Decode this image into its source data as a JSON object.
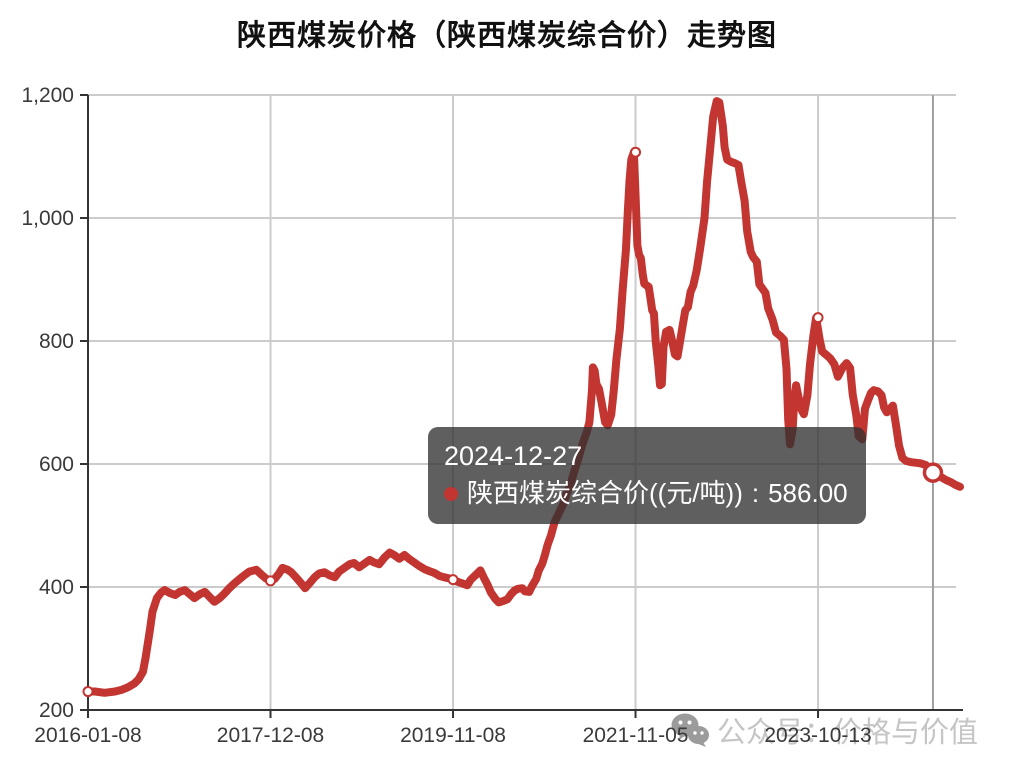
{
  "header": {
    "title": "陕西煤炭价格（陕西煤炭综合价）走势图"
  },
  "tooltip": {
    "date": "2024-12-27",
    "series_label": "陕西煤炭综合价((元/吨))",
    "separator": " : ",
    "value": "586.00"
  },
  "watermark": {
    "text": "公众号：价格与价值"
  },
  "colors": {
    "line": "#c23531",
    "grid": "#cccccc",
    "axis": "#333333",
    "label": "#3a3a3a",
    "crosshair": "#a0a0a0",
    "tooltip_bg": "rgba(50,50,50,0.78)",
    "watermark": "#c5c5c5",
    "watermark_icon": "#9b9b9b"
  },
  "chart_data": {
    "type": "line",
    "title": "陕西煤炭价格（陕西煤炭综合价）走势图",
    "legend": false,
    "grid": true,
    "series_name": "陕西煤炭综合价",
    "unit": "元/吨",
    "x_axis": {
      "type": "time",
      "ticks": [
        {
          "label": "2016-01-08",
          "t": 0.0
        },
        {
          "label": "2017-12-08",
          "t": 0.2093
        },
        {
          "label": "2019-11-08",
          "t": 0.4186
        },
        {
          "label": "2021-11-05",
          "t": 0.6279
        },
        {
          "label": "2023-10-13",
          "t": 0.8372
        }
      ]
    },
    "y_axis": {
      "min": 200,
      "max": 1200,
      "ticks": [
        {
          "value": 200,
          "label": "200"
        },
        {
          "value": 400,
          "label": "400"
        },
        {
          "value": 600,
          "label": "600"
        },
        {
          "value": 800,
          "label": "800"
        },
        {
          "value": 1000,
          "label": "1,000"
        },
        {
          "value": 1200,
          "label": "1,200"
        }
      ]
    },
    "highlight_markers": [
      {
        "t": 0.0,
        "v": 230,
        "date": "2016-01-08"
      },
      {
        "t": 0.2093,
        "v": 410,
        "date": "2017-12-08"
      },
      {
        "t": 0.4186,
        "v": 412,
        "date": "2019-11-08"
      },
      {
        "t": 0.6279,
        "v": 1107,
        "date": "2021-11-05"
      },
      {
        "t": 0.8372,
        "v": 838,
        "date": "2023-10-13"
      }
    ],
    "hover_point": {
      "t": 0.969,
      "v": 586,
      "date": "2024-12-27",
      "display_value": "586.00"
    },
    "points": [
      [
        0.0,
        230
      ],
      [
        0.008,
        230
      ],
      [
        0.019,
        228
      ],
      [
        0.031,
        230
      ],
      [
        0.039,
        233
      ],
      [
        0.046,
        237
      ],
      [
        0.053,
        243
      ],
      [
        0.058,
        250
      ],
      [
        0.063,
        262
      ],
      [
        0.066,
        285
      ],
      [
        0.071,
        330
      ],
      [
        0.074,
        360
      ],
      [
        0.079,
        382
      ],
      [
        0.084,
        391
      ],
      [
        0.088,
        395
      ],
      [
        0.094,
        390
      ],
      [
        0.1,
        387
      ],
      [
        0.105,
        392
      ],
      [
        0.111,
        395
      ],
      [
        0.117,
        388
      ],
      [
        0.122,
        382
      ],
      [
        0.128,
        388
      ],
      [
        0.134,
        392
      ],
      [
        0.14,
        383
      ],
      [
        0.145,
        376
      ],
      [
        0.151,
        382
      ],
      [
        0.157,
        390
      ],
      [
        0.162,
        398
      ],
      [
        0.168,
        406
      ],
      [
        0.174,
        413
      ],
      [
        0.18,
        420
      ],
      [
        0.185,
        425
      ],
      [
        0.193,
        428
      ],
      [
        0.199,
        420
      ],
      [
        0.204,
        414
      ],
      [
        0.209,
        410
      ],
      [
        0.214,
        413
      ],
      [
        0.219,
        422
      ],
      [
        0.223,
        431
      ],
      [
        0.229,
        428
      ],
      [
        0.233,
        424
      ],
      [
        0.239,
        415
      ],
      [
        0.245,
        405
      ],
      [
        0.249,
        398
      ],
      [
        0.254,
        406
      ],
      [
        0.26,
        416
      ],
      [
        0.265,
        422
      ],
      [
        0.271,
        424
      ],
      [
        0.277,
        419
      ],
      [
        0.283,
        416
      ],
      [
        0.288,
        425
      ],
      [
        0.294,
        431
      ],
      [
        0.3,
        437
      ],
      [
        0.305,
        439
      ],
      [
        0.311,
        432
      ],
      [
        0.317,
        438
      ],
      [
        0.323,
        444
      ],
      [
        0.328,
        440
      ],
      [
        0.334,
        437
      ],
      [
        0.34,
        448
      ],
      [
        0.346,
        456
      ],
      [
        0.351,
        452
      ],
      [
        0.357,
        446
      ],
      [
        0.363,
        452
      ],
      [
        0.368,
        446
      ],
      [
        0.374,
        440
      ],
      [
        0.38,
        434
      ],
      [
        0.386,
        429
      ],
      [
        0.391,
        426
      ],
      [
        0.397,
        423
      ],
      [
        0.403,
        418
      ],
      [
        0.408,
        416
      ],
      [
        0.414,
        414
      ],
      [
        0.419,
        412
      ],
      [
        0.423,
        409
      ],
      [
        0.429,
        406
      ],
      [
        0.435,
        403
      ],
      [
        0.439,
        412
      ],
      [
        0.445,
        420
      ],
      [
        0.45,
        427
      ],
      [
        0.454,
        415
      ],
      [
        0.458,
        404
      ],
      [
        0.462,
        391
      ],
      [
        0.467,
        381
      ],
      [
        0.471,
        375
      ],
      [
        0.476,
        377
      ],
      [
        0.481,
        380
      ],
      [
        0.485,
        388
      ],
      [
        0.489,
        394
      ],
      [
        0.493,
        397
      ],
      [
        0.498,
        398
      ],
      [
        0.501,
        393
      ],
      [
        0.506,
        392
      ],
      [
        0.509,
        401
      ],
      [
        0.514,
        413
      ],
      [
        0.517,
        427
      ],
      [
        0.521,
        438
      ],
      [
        0.524,
        452
      ],
      [
        0.527,
        468
      ],
      [
        0.531,
        484
      ],
      [
        0.535,
        505
      ],
      [
        0.54,
        520
      ],
      [
        0.545,
        535
      ],
      [
        0.549,
        552
      ],
      [
        0.554,
        570
      ],
      [
        0.558,
        590
      ],
      [
        0.563,
        612
      ],
      [
        0.567,
        632
      ],
      [
        0.572,
        652
      ],
      [
        0.575,
        668
      ],
      [
        0.578,
        720
      ],
      [
        0.579,
        757
      ],
      [
        0.581,
        752
      ],
      [
        0.583,
        730
      ],
      [
        0.586,
        722
      ],
      [
        0.589,
        700
      ],
      [
        0.593,
        668
      ],
      [
        0.596,
        663
      ],
      [
        0.6,
        680
      ],
      [
        0.603,
        720
      ],
      [
        0.606,
        770
      ],
      [
        0.61,
        820
      ],
      [
        0.613,
        880
      ],
      [
        0.617,
        950
      ],
      [
        0.619,
        1010
      ],
      [
        0.621,
        1060
      ],
      [
        0.623,
        1095
      ],
      [
        0.626,
        1107
      ],
      [
        0.628,
        1035
      ],
      [
        0.63,
        955
      ],
      [
        0.632,
        940
      ],
      [
        0.634,
        935
      ],
      [
        0.636,
        910
      ],
      [
        0.638,
        893
      ],
      [
        0.641,
        890
      ],
      [
        0.643,
        888
      ],
      [
        0.645,
        870
      ],
      [
        0.647,
        850
      ],
      [
        0.649,
        845
      ],
      [
        0.651,
        800
      ],
      [
        0.654,
        760
      ],
      [
        0.656,
        728
      ],
      [
        0.658,
        730
      ],
      [
        0.66,
        790
      ],
      [
        0.663,
        815
      ],
      [
        0.667,
        818
      ],
      [
        0.67,
        800
      ],
      [
        0.673,
        778
      ],
      [
        0.676,
        775
      ],
      [
        0.679,
        800
      ],
      [
        0.682,
        825
      ],
      [
        0.685,
        850
      ],
      [
        0.688,
        855
      ],
      [
        0.691,
        880
      ],
      [
        0.694,
        890
      ],
      [
        0.698,
        915
      ],
      [
        0.702,
        950
      ],
      [
        0.707,
        1000
      ],
      [
        0.71,
        1060
      ],
      [
        0.714,
        1120
      ],
      [
        0.717,
        1165
      ],
      [
        0.721,
        1190
      ],
      [
        0.724,
        1188
      ],
      [
        0.728,
        1150
      ],
      [
        0.73,
        1115
      ],
      [
        0.733,
        1095
      ],
      [
        0.738,
        1091
      ],
      [
        0.742,
        1089
      ],
      [
        0.746,
        1086
      ],
      [
        0.749,
        1060
      ],
      [
        0.753,
        1028
      ],
      [
        0.756,
        978
      ],
      [
        0.76,
        945
      ],
      [
        0.763,
        936
      ],
      [
        0.767,
        929
      ],
      [
        0.77,
        892
      ],
      [
        0.773,
        886
      ],
      [
        0.777,
        878
      ],
      [
        0.78,
        853
      ],
      [
        0.785,
        835
      ],
      [
        0.789,
        814
      ],
      [
        0.794,
        808
      ],
      [
        0.798,
        802
      ],
      [
        0.801,
        755
      ],
      [
        0.803,
        672
      ],
      [
        0.805,
        632
      ],
      [
        0.808,
        655
      ],
      [
        0.81,
        705
      ],
      [
        0.812,
        728
      ],
      [
        0.815,
        707
      ],
      [
        0.818,
        689
      ],
      [
        0.821,
        681
      ],
      [
        0.825,
        712
      ],
      [
        0.828,
        762
      ],
      [
        0.832,
        810
      ],
      [
        0.835,
        838
      ],
      [
        0.839,
        803
      ],
      [
        0.842,
        783
      ],
      [
        0.847,
        777
      ],
      [
        0.851,
        772
      ],
      [
        0.856,
        762
      ],
      [
        0.86,
        742
      ],
      [
        0.865,
        756
      ],
      [
        0.87,
        764
      ],
      [
        0.874,
        756
      ],
      [
        0.877,
        713
      ],
      [
        0.881,
        680
      ],
      [
        0.884,
        645
      ],
      [
        0.888,
        640
      ],
      [
        0.891,
        690
      ],
      [
        0.895,
        705
      ],
      [
        0.898,
        716
      ],
      [
        0.901,
        720
      ],
      [
        0.906,
        718
      ],
      [
        0.91,
        712
      ],
      [
        0.913,
        692
      ],
      [
        0.916,
        684
      ],
      [
        0.92,
        690
      ],
      [
        0.923,
        695
      ],
      [
        0.927,
        660
      ],
      [
        0.93,
        630
      ],
      [
        0.934,
        610
      ],
      [
        0.938,
        605
      ],
      [
        0.944,
        603
      ],
      [
        0.95,
        602
      ],
      [
        0.955,
        601
      ],
      [
        0.961,
        598
      ],
      [
        0.967,
        588
      ],
      [
        0.969,
        586
      ],
      [
        0.973,
        582
      ],
      [
        0.978,
        579
      ],
      [
        0.984,
        574
      ],
      [
        0.99,
        570
      ],
      [
        0.995,
        566
      ],
      [
        1.0,
        563
      ]
    ]
  }
}
